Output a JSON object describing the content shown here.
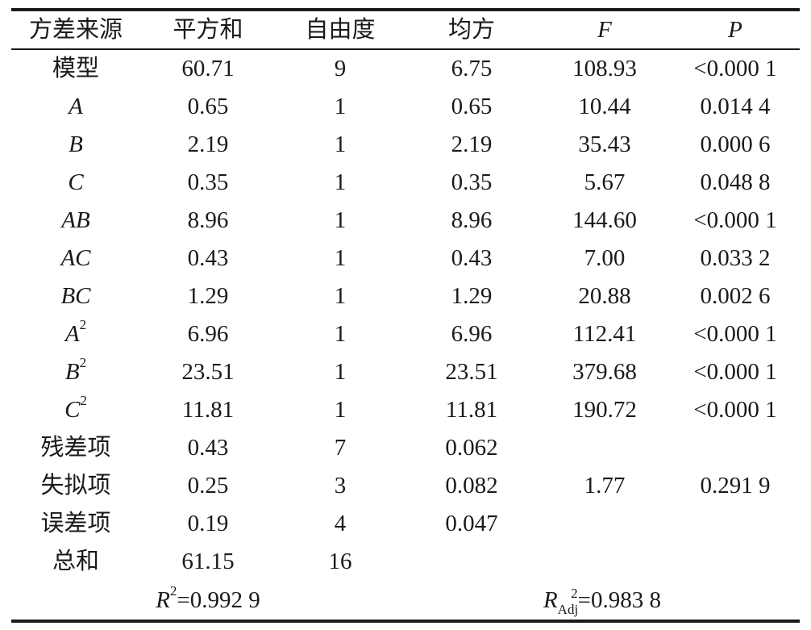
{
  "headers": {
    "source": "方差来源",
    "ss": "平方和",
    "df": "自由度",
    "ms": "均方",
    "f": "F",
    "p": "P"
  },
  "rows": [
    {
      "source": "模型",
      "ss": "60.71",
      "df": "9",
      "ms": "6.75",
      "f": "108.93",
      "p": "<0.000 1"
    },
    {
      "source": "A",
      "ss": "0.65",
      "df": "1",
      "ms": "0.65",
      "f": "10.44",
      "p": "0.014 4"
    },
    {
      "source": "B",
      "ss": "2.19",
      "df": "1",
      "ms": "2.19",
      "f": "35.43",
      "p": "0.000 6"
    },
    {
      "source": "C",
      "ss": "0.35",
      "df": "1",
      "ms": "0.35",
      "f": "5.67",
      "p": "0.048 8"
    },
    {
      "source": "AB",
      "ss": "8.96",
      "df": "1",
      "ms": "8.96",
      "f": "144.60",
      "p": "<0.000 1"
    },
    {
      "source": "AC",
      "ss": "0.43",
      "df": "1",
      "ms": "0.43",
      "f": "7.00",
      "p": "0.033 2"
    },
    {
      "source": "BC",
      "ss": "1.29",
      "df": "1",
      "ms": "1.29",
      "f": "20.88",
      "p": "0.002 6"
    },
    {
      "source": "A",
      "sup": "2",
      "ss": "6.96",
      "df": "1",
      "ms": "6.96",
      "f": "112.41",
      "p": "<0.000 1"
    },
    {
      "source": "B",
      "sup": "2",
      "ss": "23.51",
      "df": "1",
      "ms": "23.51",
      "f": "379.68",
      "p": "<0.000 1"
    },
    {
      "source": "C",
      "sup": "2",
      "ss": "11.81",
      "df": "1",
      "ms": "11.81",
      "f": "190.72",
      "p": "<0.000 1"
    },
    {
      "source": "残差项",
      "ss": "0.43",
      "df": "7",
      "ms": "0.062",
      "f": "",
      "p": ""
    },
    {
      "source": "失拟项",
      "ss": "0.25",
      "df": "3",
      "ms": "0.082",
      "f": "1.77",
      "p": "0.291 9"
    },
    {
      "source": "误差项",
      "ss": "0.19",
      "df": "4",
      "ms": "0.047",
      "f": "",
      "p": ""
    },
    {
      "source": "总和",
      "ss": "61.15",
      "df": "16",
      "ms": "",
      "f": "",
      "p": ""
    }
  ],
  "summary": {
    "r2_symbol": "R",
    "r2_sup": "2",
    "r2_value": "=0.992 9",
    "r2adj_symbol": "R",
    "r2adj_sup": "2",
    "r2adj_sub": "Adj",
    "r2adj_value": "=0.983 8"
  }
}
